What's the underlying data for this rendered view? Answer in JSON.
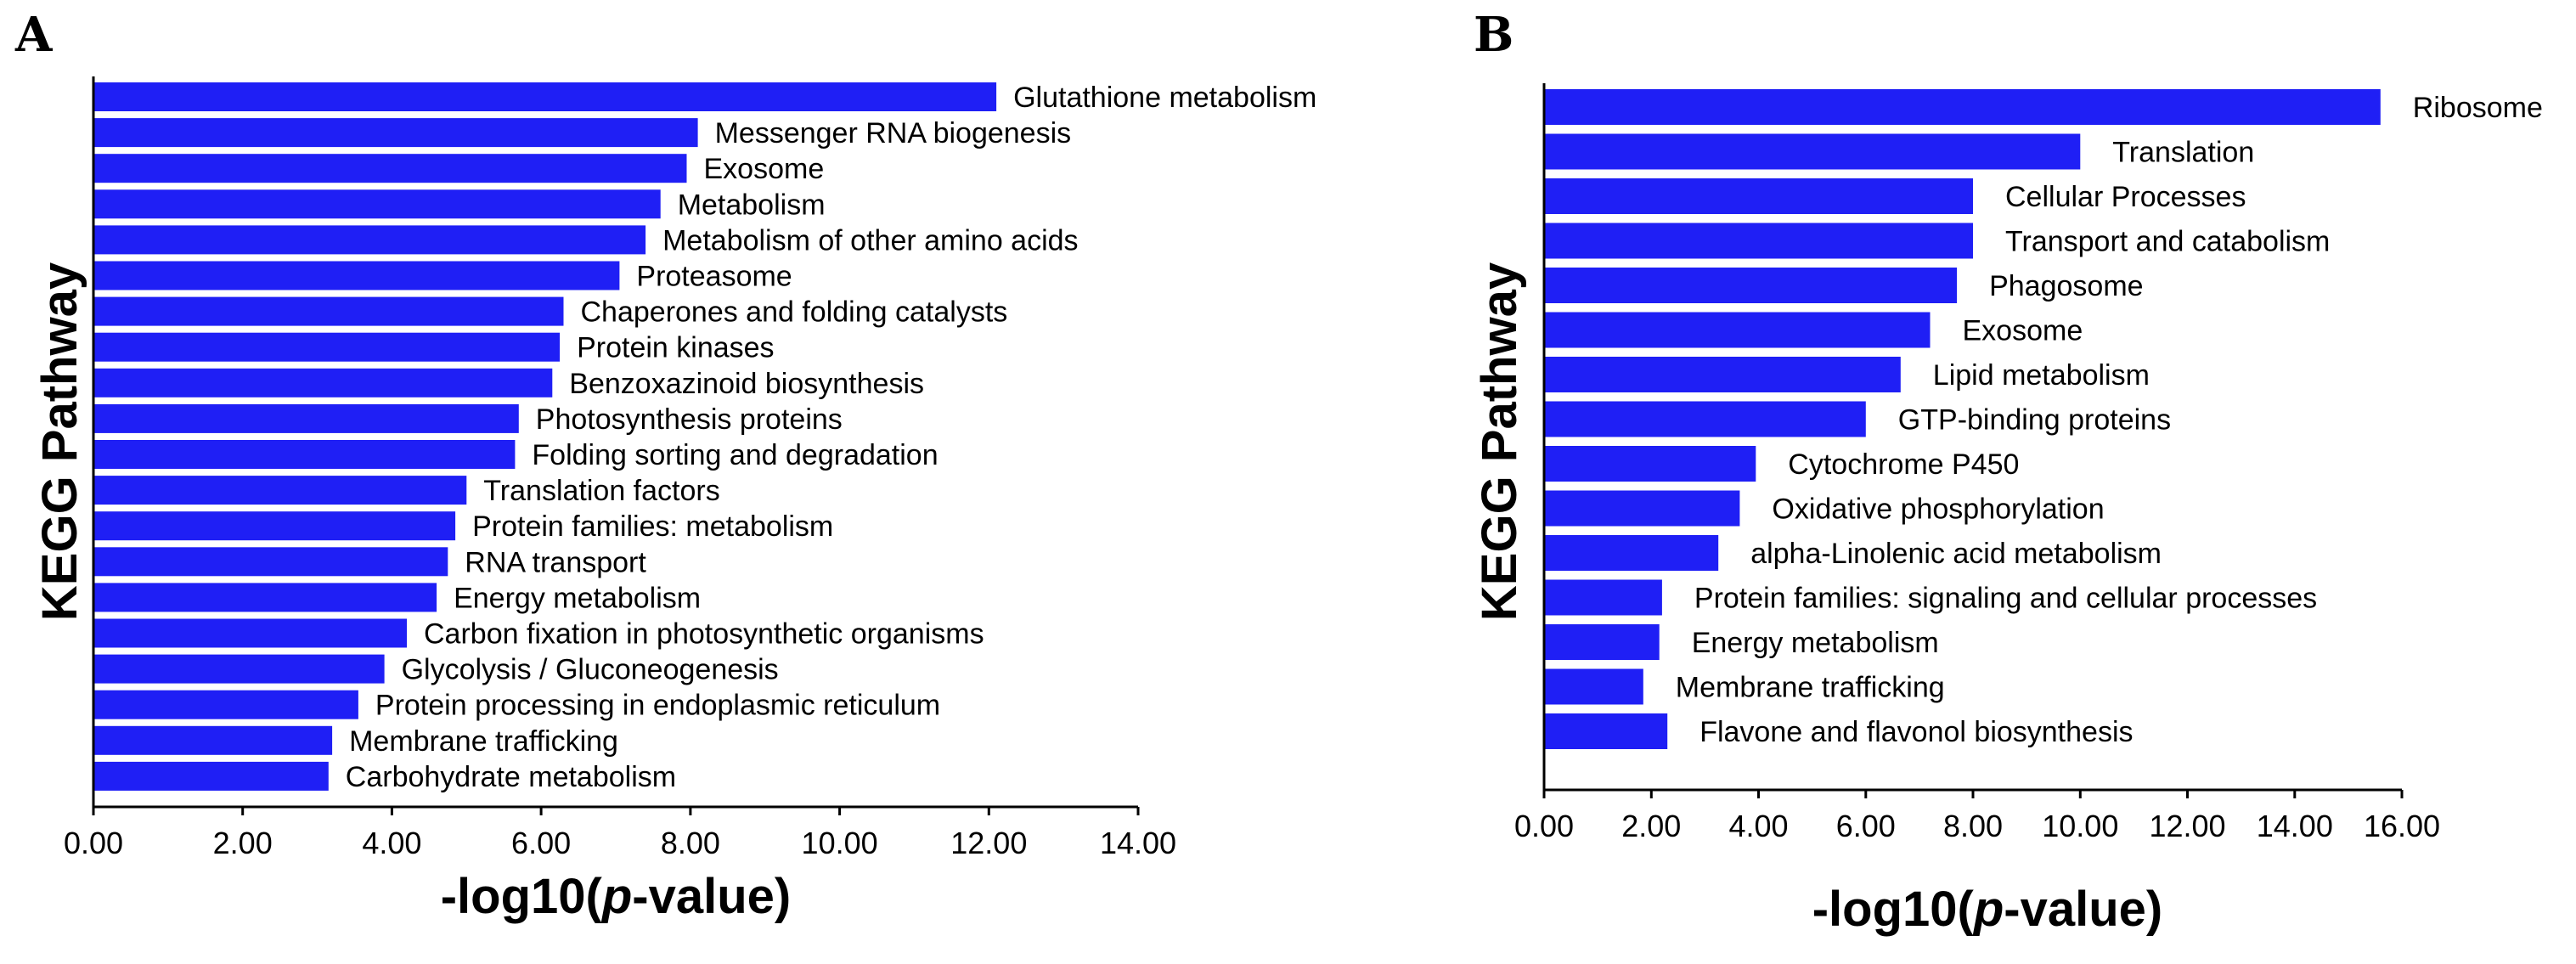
{
  "colors": {
    "bar": "#1f1ff5",
    "axis": "#000000"
  },
  "chart_data": [
    {
      "panel": "A",
      "type": "bar",
      "orientation": "horizontal",
      "ylabel": "KEGG Pathway",
      "xlabel_prefix": "-log10(",
      "xlabel_italic": "p",
      "xlabel_suffix": "-value)",
      "xlim": [
        0,
        14
      ],
      "xticks": [
        "0.00",
        "2.00",
        "4.00",
        "6.00",
        "8.00",
        "10.00",
        "12.00",
        "14.00"
      ],
      "categories": [
        "Glutathione metabolism",
        "Messenger RNA biogenesis",
        "Exosome",
        "Metabolism",
        "Metabolism of other amino acids",
        "Proteasome",
        "Chaperones and folding catalysts",
        "Protein kinases",
        "Benzoxazinoid biosynthesis",
        "Photosynthesis proteins",
        "Folding sorting and degradation",
        "Translation factors",
        "Protein families: metabolism",
        "RNA transport",
        "Energy metabolism",
        "Carbon fixation in photosynthetic organisms",
        "Glycolysis / Gluconeogenesis",
        "Protein processing in endoplasmic reticulum",
        "Membrane trafficking",
        "Carbohydrate metabolism"
      ],
      "values": [
        12.1,
        8.1,
        7.95,
        7.6,
        7.4,
        7.05,
        6.3,
        6.25,
        6.15,
        5.7,
        5.65,
        5.0,
        4.85,
        4.75,
        4.6,
        4.2,
        3.9,
        3.55,
        3.2,
        3.15
      ]
    },
    {
      "panel": "B",
      "type": "bar",
      "orientation": "horizontal",
      "ylabel": "KEGG Pathway",
      "xlabel_prefix": "-log10(",
      "xlabel_italic": "p",
      "xlabel_suffix": "-value)",
      "xlim": [
        0,
        16
      ],
      "xticks": [
        "0.00",
        "2.00",
        "4.00",
        "6.00",
        "8.00",
        "10.00",
        "12.00",
        "14.00",
        "16.00"
      ],
      "categories": [
        "Ribosome",
        "Translation",
        "Cellular Processes",
        "Transport and catabolism",
        "Phagosome",
        "Exosome",
        "Lipid metabolism",
        "GTP-binding proteins",
        "Cytochrome P450",
        "Oxidative phosphorylation",
        "alpha-Linolenic acid metabolism",
        "Protein families: signaling and cellular processes",
        "Energy metabolism",
        "Membrane trafficking",
        "Flavone and flavonol biosynthesis"
      ],
      "values": [
        15.6,
        10.0,
        8.0,
        8.0,
        7.7,
        7.2,
        6.65,
        6.0,
        3.95,
        3.65,
        3.25,
        2.2,
        2.15,
        1.85,
        2.3
      ]
    }
  ]
}
